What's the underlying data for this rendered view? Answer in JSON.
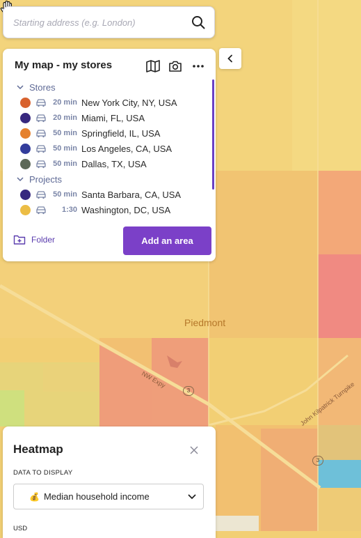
{
  "search": {
    "placeholder": "Starting address (e.g. London)",
    "icon": "search-icon"
  },
  "panel": {
    "title": "My map - my stores",
    "tools": [
      "map-icon",
      "camera-icon",
      "more-icon"
    ],
    "groups": [
      {
        "label": "Stores",
        "items": [
          {
            "color": "#d8622e",
            "duration": "20 min",
            "label": "New York City, NY, USA"
          },
          {
            "color": "#37287f",
            "duration": "20 min",
            "label": "Miami, FL, USA"
          },
          {
            "color": "#e5812e",
            "duration": "50 min",
            "label": "Springfield, IL, USA"
          },
          {
            "color": "#333d9c",
            "duration": "50 min",
            "label": "Los Angeles, CA, USA"
          },
          {
            "color": "#5c6858",
            "duration": "50 min",
            "label": "Dallas, TX, USA"
          }
        ]
      },
      {
        "label": "Projects",
        "items": [
          {
            "color": "#37287f",
            "duration": "50 min",
            "label": "Santa Barbara, CA, USA"
          },
          {
            "color": "#ecbd45",
            "duration": "1:30",
            "label": "Washington, DC, USA"
          }
        ]
      }
    ],
    "folder_label": "Folder",
    "add_area_label": "Add an area"
  },
  "heatmap": {
    "title": "Heatmap",
    "data_label": "DATA TO DISPLAY",
    "selected_icon": "💰",
    "selected": "Median household income",
    "currency_label": "USD"
  },
  "map": {
    "place_label": "Piedmont",
    "road_label": "NW Expy",
    "turnpike_label": "John Kilpatrick Turnpike",
    "route_marker": "3"
  }
}
